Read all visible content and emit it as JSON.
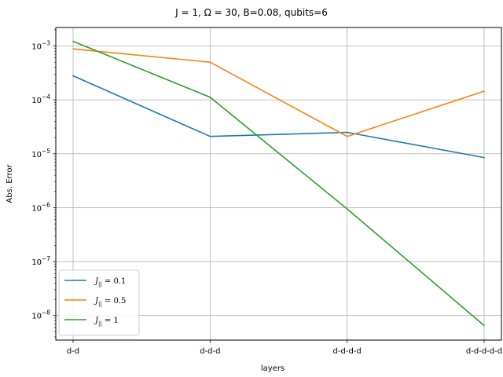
{
  "chart_data": {
    "type": "line",
    "title": "J = 1, Ω = 30, B=0.08, qubits=6",
    "xlabel": "layers",
    "ylabel": "Abs. Error",
    "yscale": "log",
    "ylim": [
      3.5e-09,
      0.0022
    ],
    "categories": [
      "d-d",
      "d-d-d",
      "d-d-d-d",
      "d-d-d-d-d"
    ],
    "yticks": [
      {
        "value": 1e-08,
        "base": "10",
        "exp": "−8"
      },
      {
        "value": 1e-07,
        "base": "10",
        "exp": "−7"
      },
      {
        "value": 1e-06,
        "base": "10",
        "exp": "−6"
      },
      {
        "value": 1e-05,
        "base": "10",
        "exp": "−5"
      },
      {
        "value": 0.0001,
        "base": "10",
        "exp": "−4"
      },
      {
        "value": 0.001,
        "base": "10",
        "exp": "−3"
      }
    ],
    "grid": true,
    "legend_position": "lower-left",
    "series": [
      {
        "name": "J|| = 0.1",
        "legend_main": "J",
        "legend_sub": "||",
        "legend_rest": " = 0.1",
        "color": "#1f77b4",
        "values": [
          0.00028,
          2.1e-05,
          2.5e-05,
          8.5e-06
        ]
      },
      {
        "name": "J|| = 0.5",
        "legend_main": "J",
        "legend_sub": "||",
        "legend_rest": " = 0.5",
        "color": "#ff7f0e",
        "values": [
          0.00088,
          0.0005,
          2.1e-05,
          0.000145
        ]
      },
      {
        "name": "J|| = 1",
        "legend_main": "J",
        "legend_sub": "||",
        "legend_rest": " = 1",
        "color": "#2ca02c",
        "values": [
          0.00122,
          0.000112,
          9.5e-07,
          6.5e-09
        ]
      }
    ]
  }
}
